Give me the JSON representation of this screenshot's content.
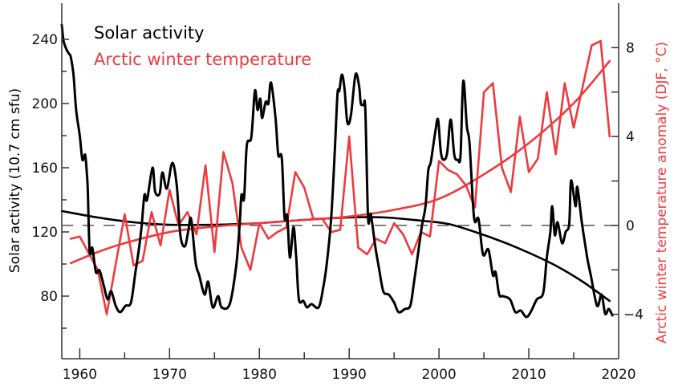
{
  "chart_data": {
    "type": "line",
    "title": "",
    "xlabel": "",
    "xlim": [
      1958,
      2020
    ],
    "x_ticks": [
      1960,
      1970,
      1980,
      1990,
      2000,
      2010,
      2020
    ],
    "x_tick_labels": [
      "1960",
      "1970",
      "1980",
      "1990",
      "2000",
      "2010",
      "2020"
    ],
    "x_minor_ticks": [
      1965,
      1975,
      1985,
      1995,
      2005,
      2015
    ],
    "left_axis": {
      "label": "Solar activity (10.7 cm sfu)",
      "ylim": [
        41,
        262.5
      ],
      "ticks": [
        80,
        120,
        160,
        200,
        240
      ],
      "tick_labels": [
        "80",
        "120",
        "160",
        "200",
        "240"
      ],
      "minor_ticks": [
        60,
        100,
        140,
        180,
        220
      ]
    },
    "right_axis": {
      "label": "Arctic winter temperature anomaly (DJF, °C)",
      "ylim": [
        -6,
        10
      ],
      "ticks": [
        -4,
        0,
        4,
        8
      ],
      "tick_labels": [
        "−4",
        "0",
        "4",
        "8"
      ],
      "minor_ticks": [
        -2,
        2,
        6
      ]
    },
    "reference_line": {
      "axis": "right",
      "value": 0,
      "style": "dashed"
    },
    "legend": {
      "placement": "top-left",
      "entries": [
        {
          "label": "Solar activity",
          "color": "#000000"
        },
        {
          "label": "Arctic winter temperature",
          "color": "#ee3a3f"
        }
      ]
    },
    "series": [
      {
        "name": "Solar activity",
        "axis": "left",
        "color": "#000000",
        "points": [
          [
            1958.0,
            249
          ],
          [
            1958.2,
            239
          ],
          [
            1958.5,
            234
          ],
          [
            1958.8,
            231
          ],
          [
            1959.0,
            229
          ],
          [
            1959.3,
            218
          ],
          [
            1959.6,
            196
          ],
          [
            1960.0,
            180
          ],
          [
            1960.3,
            165
          ],
          [
            1960.6,
            168
          ],
          [
            1960.8,
            156
          ],
          [
            1960.9,
            145
          ],
          [
            1961.1,
            108
          ],
          [
            1961.4,
            110
          ],
          [
            1961.8,
            95
          ],
          [
            1962.2,
            96
          ],
          [
            1962.7,
            86
          ],
          [
            1963.1,
            78
          ],
          [
            1963.5,
            83
          ],
          [
            1964.0,
            74
          ],
          [
            1964.5,
            70
          ],
          [
            1965.1,
            74
          ],
          [
            1965.7,
            76
          ],
          [
            1966.2,
            95
          ],
          [
            1966.6,
            110
          ],
          [
            1966.9,
            124
          ],
          [
            1967.2,
            143
          ],
          [
            1967.5,
            140
          ],
          [
            1968.1,
            160
          ],
          [
            1968.4,
            145
          ],
          [
            1968.9,
            144
          ],
          [
            1969.2,
            157
          ],
          [
            1969.7,
            147
          ],
          [
            1970.3,
            163
          ],
          [
            1970.8,
            149
          ],
          [
            1971.2,
            118
          ],
          [
            1971.7,
            111
          ],
          [
            1972.1,
            121
          ],
          [
            1972.4,
            128
          ],
          [
            1972.9,
            101
          ],
          [
            1973.3,
            93
          ],
          [
            1973.9,
            81
          ],
          [
            1974.3,
            89
          ],
          [
            1974.8,
            73
          ],
          [
            1975.4,
            80
          ],
          [
            1975.8,
            73
          ],
          [
            1976.7,
            75
          ],
          [
            1977.4,
            98
          ],
          [
            1977.8,
            124
          ],
          [
            1978.0,
            143
          ],
          [
            1978.3,
            141
          ],
          [
            1978.6,
            174
          ],
          [
            1979.1,
            179
          ],
          [
            1979.5,
            208
          ],
          [
            1979.8,
            196
          ],
          [
            1980.1,
            203
          ],
          [
            1980.3,
            191
          ],
          [
            1980.7,
            201
          ],
          [
            1981.0,
            200
          ],
          [
            1981.3,
            213
          ],
          [
            1981.8,
            191
          ],
          [
            1982.1,
            168
          ],
          [
            1982.5,
            166
          ],
          [
            1982.8,
            129
          ],
          [
            1983.1,
            130
          ],
          [
            1983.4,
            104
          ],
          [
            1983.8,
            123
          ],
          [
            1984.1,
            104
          ],
          [
            1984.4,
            78
          ],
          [
            1984.9,
            77
          ],
          [
            1985.3,
            73
          ],
          [
            1985.8,
            75
          ],
          [
            1986.6,
            73
          ],
          [
            1987.1,
            85
          ],
          [
            1987.5,
            100
          ],
          [
            1988.0,
            129
          ],
          [
            1988.4,
            171
          ],
          [
            1988.7,
            206
          ],
          [
            1988.9,
            208
          ],
          [
            1989.2,
            218
          ],
          [
            1989.5,
            208
          ],
          [
            1989.8,
            188
          ],
          [
            1990.2,
            193
          ],
          [
            1990.7,
            218
          ],
          [
            1991.1,
            211
          ],
          [
            1991.3,
            200
          ],
          [
            1991.6,
            199
          ],
          [
            1991.8,
            196
          ],
          [
            1992.1,
            129
          ],
          [
            1992.4,
            131
          ],
          [
            1992.9,
            111
          ],
          [
            1993.3,
            98
          ],
          [
            1993.8,
            83
          ],
          [
            1994.4,
            81
          ],
          [
            1995.0,
            76
          ],
          [
            1995.5,
            70
          ],
          [
            1996.2,
            72
          ],
          [
            1996.8,
            74
          ],
          [
            1997.2,
            88
          ],
          [
            1997.7,
            108
          ],
          [
            1998.1,
            124
          ],
          [
            1998.5,
            136
          ],
          [
            1998.8,
            158
          ],
          [
            1999.1,
            164
          ],
          [
            1999.6,
            183
          ],
          [
            1999.9,
            190
          ],
          [
            2000.2,
            170
          ],
          [
            2000.5,
            165
          ],
          [
            2000.9,
            169
          ],
          [
            2001.3,
            190
          ],
          [
            2001.7,
            168
          ],
          [
            2002.1,
            165
          ],
          [
            2002.4,
            168
          ],
          [
            2002.7,
            214
          ],
          [
            2003.1,
            186
          ],
          [
            2003.4,
            175
          ],
          [
            2003.9,
            129
          ],
          [
            2004.4,
            128
          ],
          [
            2004.9,
            106
          ],
          [
            2005.5,
            109
          ],
          [
            2006.0,
            93
          ],
          [
            2006.3,
            95
          ],
          [
            2006.7,
            81
          ],
          [
            2007.1,
            80
          ],
          [
            2007.9,
            78
          ],
          [
            2008.5,
            70
          ],
          [
            2009.1,
            71
          ],
          [
            2009.7,
            67
          ],
          [
            2010.2,
            70
          ],
          [
            2010.9,
            78
          ],
          [
            2011.6,
            82
          ],
          [
            2012.0,
            104
          ],
          [
            2012.4,
            120
          ],
          [
            2012.6,
            136
          ],
          [
            2012.9,
            118
          ],
          [
            2013.2,
            126
          ],
          [
            2013.7,
            113
          ],
          [
            2014.1,
            120
          ],
          [
            2014.5,
            125
          ],
          [
            2014.7,
            152
          ],
          [
            2015.2,
            136
          ],
          [
            2015.4,
            148
          ],
          [
            2015.9,
            126
          ],
          [
            2016.5,
            104
          ],
          [
            2016.9,
            93
          ],
          [
            2017.6,
            74
          ],
          [
            2018.1,
            81
          ],
          [
            2018.5,
            69
          ],
          [
            2018.9,
            72
          ],
          [
            2019.3,
            68
          ]
        ]
      },
      {
        "name": "Arctic winter temperature",
        "axis": "right",
        "color": "#ee3a3f",
        "points": [
          [
            1959,
            -0.6
          ],
          [
            1960,
            -0.5
          ],
          [
            1962,
            -2.0
          ],
          [
            1963,
            -4.0
          ],
          [
            1965,
            0.5
          ],
          [
            1966,
            -1.8
          ],
          [
            1967,
            -1.6
          ],
          [
            1968,
            0.6
          ],
          [
            1969,
            -0.9
          ],
          [
            1970,
            1.6
          ],
          [
            1971,
            0.0
          ],
          [
            1972,
            0.6
          ],
          [
            1973,
            -0.4
          ],
          [
            1974,
            2.7
          ],
          [
            1975,
            -1.2
          ],
          [
            1976,
            3.3
          ],
          [
            1977,
            1.9
          ],
          [
            1978,
            -1.0
          ],
          [
            1979,
            -2.0
          ],
          [
            1980,
            0.1
          ],
          [
            1981,
            -0.6
          ],
          [
            1982,
            -0.3
          ],
          [
            1983,
            -0.1
          ],
          [
            1984,
            2.4
          ],
          [
            1985,
            1.7
          ],
          [
            1986,
            0.3
          ],
          [
            1987,
            0.3
          ],
          [
            1988,
            -0.3
          ],
          [
            1989,
            -0.2
          ],
          [
            1990,
            4.0
          ],
          [
            1991,
            -1.0
          ],
          [
            1992,
            -1.3
          ],
          [
            1993,
            -0.6
          ],
          [
            1994,
            -0.8
          ],
          [
            1995,
            0.1
          ],
          [
            1996,
            -0.4
          ],
          [
            1997,
            -1.3
          ],
          [
            1998,
            -0.3
          ],
          [
            1999,
            -0.5
          ],
          [
            2000,
            2.9
          ],
          [
            2001,
            2.5
          ],
          [
            2002,
            2.3
          ],
          [
            2003,
            1.8
          ],
          [
            2004,
            0.8
          ],
          [
            2005,
            6.0
          ],
          [
            2006,
            6.4
          ],
          [
            2007,
            2.6
          ],
          [
            2008,
            1.5
          ],
          [
            2009,
            4.9
          ],
          [
            2010,
            2.4
          ],
          [
            2011,
            3.0
          ],
          [
            2012,
            6.0
          ],
          [
            2013,
            3.2
          ],
          [
            2014,
            6.4
          ],
          [
            2015,
            4.4
          ],
          [
            2017,
            8.1
          ],
          [
            2018,
            8.3
          ],
          [
            2019,
            4.0
          ]
        ]
      },
      {
        "name": "Solar activity trend",
        "axis": "left",
        "color": "#000000",
        "points": [
          [
            1958,
            133
          ],
          [
            1962,
            129
          ],
          [
            1966,
            126
          ],
          [
            1970,
            124.5
          ],
          [
            1975,
            124.5
          ],
          [
            1980,
            125.5
          ],
          [
            1985,
            127.5
          ],
          [
            1990,
            129
          ],
          [
            1994,
            129
          ],
          [
            1998,
            127
          ],
          [
            2001,
            125
          ],
          [
            2004,
            120
          ],
          [
            2007,
            114
          ],
          [
            2010,
            107
          ],
          [
            2013,
            99
          ],
          [
            2016,
            89
          ],
          [
            2019,
            77
          ]
        ]
      },
      {
        "name": "Arctic temperature trend",
        "axis": "right",
        "color": "#ee3a3f",
        "points": [
          [
            1959,
            -1.7
          ],
          [
            1962,
            -1.2
          ],
          [
            1965,
            -0.8
          ],
          [
            1970,
            -0.3
          ],
          [
            1975,
            -0.05
          ],
          [
            1980,
            0.1
          ],
          [
            1985,
            0.25
          ],
          [
            1990,
            0.4
          ],
          [
            1995,
            0.7
          ],
          [
            2000,
            1.2
          ],
          [
            2005,
            2.3
          ],
          [
            2010,
            3.7
          ],
          [
            2015,
            5.5
          ],
          [
            2019,
            7.4
          ]
        ]
      }
    ]
  }
}
